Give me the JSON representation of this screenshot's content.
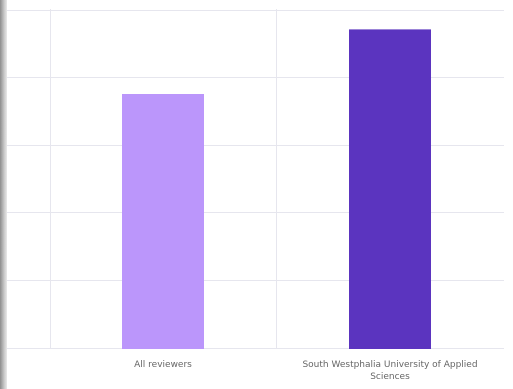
{
  "chart_data": {
    "type": "bar",
    "categories": [
      "All reviewers",
      "South Westphalia University of Applied Sciences"
    ],
    "category_label_lines": [
      [
        "All reviewers"
      ],
      [
        "South Westphalia University of Applied",
        "Sciences"
      ]
    ],
    "series": [
      {
        "values": [
          0.75,
          0.94
        ],
        "colors": [
          "#bb96fb",
          "#5b34bf"
        ]
      }
    ],
    "ylim": [
      0,
      1
    ],
    "grid": true,
    "legend": "none",
    "title": "",
    "xlabel": "",
    "ylabel": ""
  }
}
